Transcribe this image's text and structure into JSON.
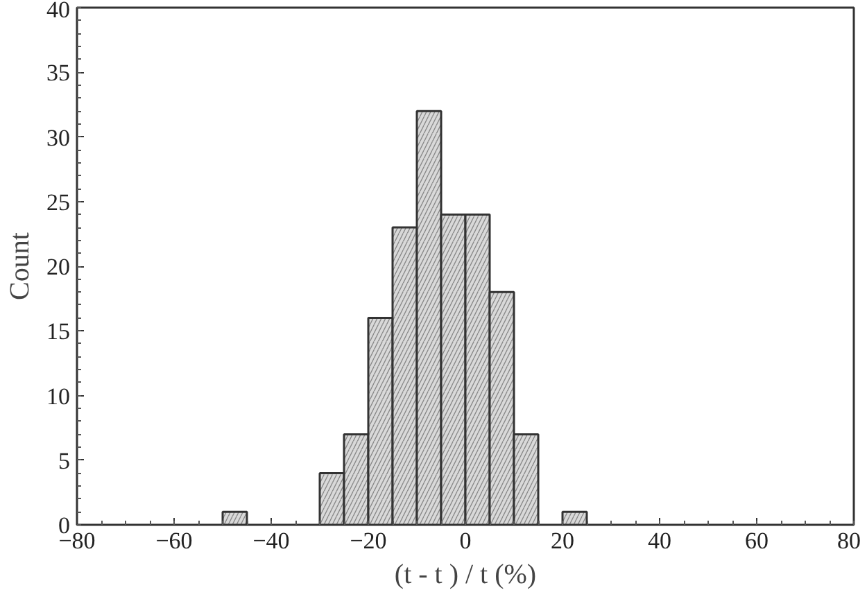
{
  "chart_data": {
    "type": "histogram",
    "xlabel": "(t - t ) / t (%)",
    "ylabel": "Count",
    "bins": [
      -50,
      -45,
      -40,
      -35,
      -30,
      -25,
      -20,
      -15,
      -10,
      -5,
      0,
      5,
      10,
      15,
      20,
      25
    ],
    "values": [
      1,
      0,
      0,
      0,
      4,
      7,
      16,
      23,
      32,
      24,
      24,
      18,
      7,
      0,
      1
    ],
    "color": "#d9d9d9",
    "xlim": [
      -80,
      80
    ],
    "xticks": [
      -80,
      -60,
      -40,
      -20,
      0,
      20,
      40,
      60,
      80
    ],
    "ylim": [
      0,
      40
    ],
    "yticks": [
      0,
      5,
      10,
      15,
      20,
      25,
      30,
      35,
      40
    ],
    "grid": false
  }
}
